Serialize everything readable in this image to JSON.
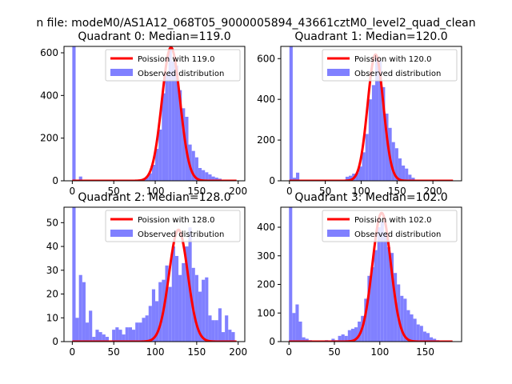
{
  "figure": {
    "suptitle": "n file: modeM0/AS1A12_068T05_9000005894_43661cztM0_level2_quad_clean"
  },
  "chart_data": [
    {
      "type": "bar",
      "title": "Quadrant 0: Median=119.0",
      "xlim": [
        -10,
        208
      ],
      "ylim": [
        0,
        630
      ],
      "xticks": [
        0,
        50,
        100,
        150,
        200
      ],
      "yticks": [
        0,
        200,
        400,
        600
      ],
      "legend": {
        "placement": "top-right",
        "entries": [
          "Poission with 119.0",
          "Observed distribution"
        ]
      },
      "poisson_mean": 119.0,
      "poisson_peak": 625,
      "curve_range": [
        0,
        198
      ],
      "bar_color": "#8080ff",
      "curve_color": "#ff0000",
      "bin_width": 4,
      "bins": [
        [
          0,
          630
        ],
        [
          4,
          5
        ],
        [
          8,
          20
        ],
        [
          12,
          2
        ],
        [
          16,
          2
        ],
        [
          20,
          1
        ],
        [
          24,
          1
        ],
        [
          28,
          1
        ],
        [
          32,
          1
        ],
        [
          36,
          1
        ],
        [
          40,
          1
        ],
        [
          44,
          1
        ],
        [
          48,
          1
        ],
        [
          52,
          1
        ],
        [
          56,
          1
        ],
        [
          60,
          1
        ],
        [
          64,
          1
        ],
        [
          68,
          1
        ],
        [
          72,
          2
        ],
        [
          76,
          2
        ],
        [
          80,
          3
        ],
        [
          84,
          10
        ],
        [
          88,
          20
        ],
        [
          92,
          35
        ],
        [
          96,
          75
        ],
        [
          100,
          150
        ],
        [
          104,
          240
        ],
        [
          108,
          410
        ],
        [
          112,
          500
        ],
        [
          116,
          620
        ],
        [
          120,
          560
        ],
        [
          124,
          540
        ],
        [
          128,
          425
        ],
        [
          132,
          340
        ],
        [
          136,
          300
        ],
        [
          140,
          170
        ],
        [
          144,
          140
        ],
        [
          148,
          110
        ],
        [
          152,
          60
        ],
        [
          156,
          50
        ],
        [
          160,
          40
        ],
        [
          164,
          30
        ],
        [
          168,
          20
        ],
        [
          172,
          15
        ],
        [
          176,
          10
        ],
        [
          180,
          5
        ],
        [
          184,
          3
        ],
        [
          188,
          2
        ],
        [
          192,
          1
        ],
        [
          196,
          1
        ]
      ]
    },
    {
      "type": "bar",
      "title": "Quadrant 1: Median=120.0",
      "xlim": [
        -12,
        240
      ],
      "ylim": [
        0,
        660
      ],
      "xticks": [
        0,
        50,
        100,
        150,
        200
      ],
      "yticks": [
        0,
        200,
        400,
        600
      ],
      "legend": {
        "placement": "top-right",
        "entries": [
          "Poission with 120.0",
          "Observed distribution"
        ]
      },
      "poisson_mean": 120.0,
      "poisson_peak": 620,
      "curve_range": [
        0,
        228
      ],
      "bar_color": "#8080ff",
      "curve_color": "#ff0000",
      "bin_width": 4.6,
      "bins": [
        [
          0,
          660
        ],
        [
          4.6,
          15
        ],
        [
          9.2,
          40
        ],
        [
          13.8,
          3
        ],
        [
          18.4,
          2
        ],
        [
          23,
          1
        ],
        [
          27.6,
          1
        ],
        [
          32.2,
          1
        ],
        [
          36.8,
          1
        ],
        [
          41.4,
          1
        ],
        [
          46,
          1
        ],
        [
          50.6,
          1
        ],
        [
          55.2,
          1
        ],
        [
          59.8,
          1
        ],
        [
          64.4,
          3
        ],
        [
          69,
          3
        ],
        [
          73.6,
          5
        ],
        [
          78.2,
          20
        ],
        [
          82.8,
          25
        ],
        [
          87.4,
          35
        ],
        [
          92,
          40
        ],
        [
          96.6,
          70
        ],
        [
          101.2,
          140
        ],
        [
          105.8,
          230
        ],
        [
          110.4,
          400
        ],
        [
          115,
          470
        ],
        [
          119.6,
          610
        ],
        [
          124.2,
          590
        ],
        [
          128.8,
          460
        ],
        [
          133.4,
          330
        ],
        [
          138,
          260
        ],
        [
          142.6,
          190
        ],
        [
          147.2,
          160
        ],
        [
          151.8,
          110
        ],
        [
          156.4,
          75
        ],
        [
          161,
          60
        ],
        [
          165.6,
          30
        ],
        [
          170.2,
          15
        ],
        [
          174.8,
          5
        ],
        [
          179.4,
          3
        ],
        [
          184,
          2
        ],
        [
          188.6,
          1
        ],
        [
          193.2,
          1
        ],
        [
          197.8,
          1
        ],
        [
          202.4,
          1
        ],
        [
          207,
          1
        ],
        [
          211.6,
          1
        ],
        [
          216.2,
          1
        ],
        [
          220.8,
          1
        ]
      ]
    },
    {
      "type": "bar",
      "title": "Quadrant 2: Median=128.0",
      "xlim": [
        -10,
        208
      ],
      "ylim": [
        0,
        56.5
      ],
      "xticks": [
        0,
        50,
        100,
        150,
        200
      ],
      "yticks": [
        0,
        10,
        20,
        30,
        40,
        50
      ],
      "legend": {
        "placement": "top-right",
        "entries": [
          "Poission with 128.0",
          "Observed distribution"
        ]
      },
      "poisson_mean": 128.0,
      "poisson_peak": 47,
      "curve_range": [
        0,
        198
      ],
      "bar_color": "#8080ff",
      "curve_color": "#ff0000",
      "bin_width": 4,
      "bins": [
        [
          0,
          57
        ],
        [
          4,
          10
        ],
        [
          8,
          28
        ],
        [
          12,
          25
        ],
        [
          16,
          8
        ],
        [
          20,
          13
        ],
        [
          24,
          2
        ],
        [
          28,
          5
        ],
        [
          32,
          4
        ],
        [
          36,
          3
        ],
        [
          40,
          2
        ],
        [
          44,
          0
        ],
        [
          48,
          5
        ],
        [
          52,
          6
        ],
        [
          56,
          5
        ],
        [
          60,
          3
        ],
        [
          64,
          6
        ],
        [
          68,
          6
        ],
        [
          72,
          5
        ],
        [
          76,
          8
        ],
        [
          80,
          8
        ],
        [
          84,
          10
        ],
        [
          88,
          11
        ],
        [
          92,
          15
        ],
        [
          96,
          22
        ],
        [
          100,
          17
        ],
        [
          104,
          25
        ],
        [
          108,
          26
        ],
        [
          112,
          32
        ],
        [
          116,
          23
        ],
        [
          120,
          40
        ],
        [
          124,
          36
        ],
        [
          128,
          28
        ],
        [
          132,
          33
        ],
        [
          136,
          40
        ],
        [
          140,
          48
        ],
        [
          144,
          31
        ],
        [
          148,
          28
        ],
        [
          152,
          21
        ],
        [
          156,
          26
        ],
        [
          160,
          27
        ],
        [
          164,
          11
        ],
        [
          168,
          9
        ],
        [
          172,
          9
        ],
        [
          176,
          14
        ],
        [
          180,
          4
        ],
        [
          184,
          11
        ],
        [
          188,
          5
        ],
        [
          192,
          4
        ]
      ]
    },
    {
      "type": "bar",
      "title": "Quadrant 3: Median=102.0",
      "xlim": [
        -9,
        190
      ],
      "ylim": [
        0,
        470
      ],
      "xticks": [
        0,
        50,
        100,
        150
      ],
      "yticks": [
        0,
        100,
        200,
        300,
        400
      ],
      "legend": {
        "placement": "top-right",
        "entries": [
          "Poission with 102.0",
          "Observed distribution"
        ]
      },
      "poisson_mean": 102.0,
      "poisson_peak": 450,
      "curve_range": [
        0,
        180
      ],
      "bar_color": "#8080ff",
      "curve_color": "#ff0000",
      "bin_width": 3.6,
      "bins": [
        [
          0,
          470
        ],
        [
          3.6,
          100
        ],
        [
          7.2,
          130
        ],
        [
          10.8,
          70
        ],
        [
          14.4,
          15
        ],
        [
          18,
          10
        ],
        [
          21.6,
          5
        ],
        [
          25.2,
          3
        ],
        [
          28.8,
          2
        ],
        [
          32.4,
          3
        ],
        [
          36,
          2
        ],
        [
          39.6,
          5
        ],
        [
          43.2,
          3
        ],
        [
          46.8,
          10
        ],
        [
          50.4,
          5
        ],
        [
          54,
          20
        ],
        [
          57.6,
          25
        ],
        [
          61.2,
          20
        ],
        [
          64.8,
          40
        ],
        [
          68.4,
          45
        ],
        [
          72,
          50
        ],
        [
          75.6,
          70
        ],
        [
          79.2,
          90
        ],
        [
          82.8,
          150
        ],
        [
          86.4,
          230
        ],
        [
          90,
          260
        ],
        [
          93.6,
          320
        ],
        [
          97.2,
          400
        ],
        [
          100.8,
          420
        ],
        [
          104.4,
          380
        ],
        [
          108,
          330
        ],
        [
          111.6,
          310
        ],
        [
          115.2,
          240
        ],
        [
          118.8,
          200
        ],
        [
          122.4,
          160
        ],
        [
          126,
          150
        ],
        [
          129.6,
          110
        ],
        [
          133.2,
          95
        ],
        [
          136.8,
          80
        ],
        [
          140.4,
          60
        ],
        [
          144,
          55
        ],
        [
          147.6,
          35
        ],
        [
          151.2,
          30
        ],
        [
          154.8,
          15
        ],
        [
          158.4,
          10
        ],
        [
          162,
          5
        ],
        [
          165.6,
          3
        ],
        [
          169.2,
          2
        ]
      ]
    }
  ]
}
